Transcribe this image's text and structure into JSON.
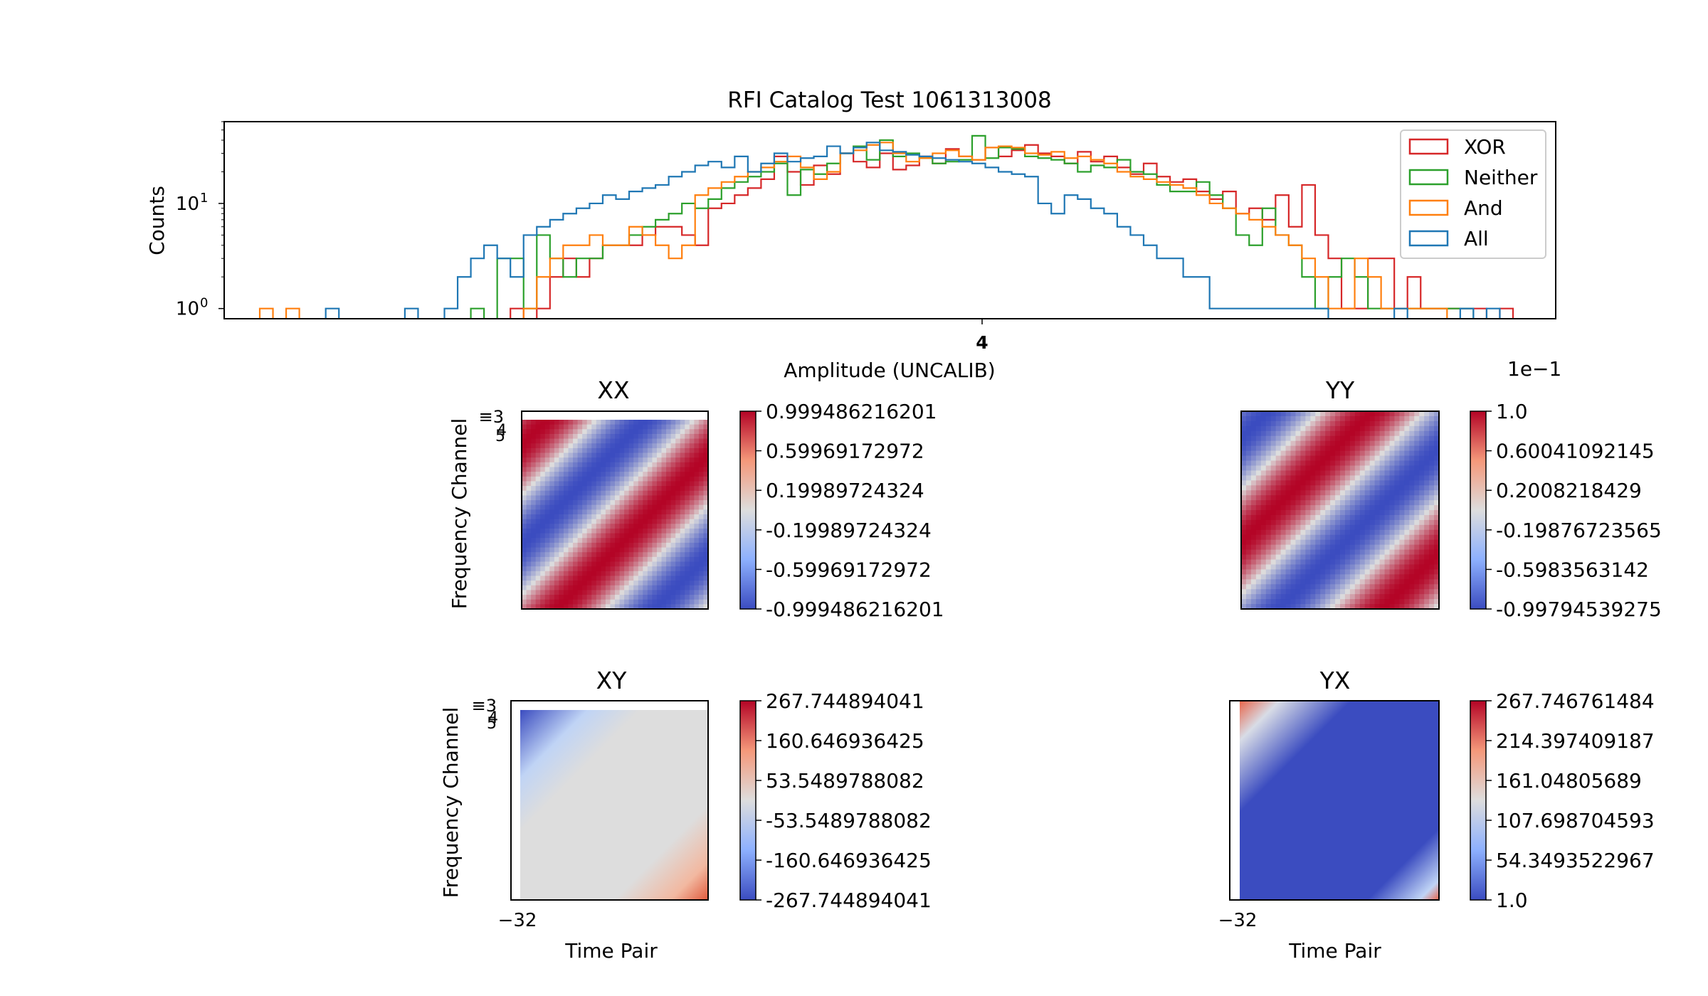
{
  "title": "RFI Catalog Test 1061313008",
  "colors": {
    "XOR": "#d62728",
    "Neither": "#2ca02c",
    "And": "#ff7f0e",
    "All": "#1f77b4",
    "cmap_low": "#3b4cc0",
    "cmap_mid": "#dddddd",
    "cmap_high": "#b40426"
  },
  "chart_data": [
    {
      "type": "histogram",
      "title": "RFI Catalog Test 1061313008",
      "xlabel": "Amplitude (UNCALIB)",
      "ylabel": "Counts",
      "yscale": "log",
      "ylim": [
        0.8,
        60
      ],
      "yticks": [
        {
          "value": 1,
          "label": "10",
          "exp": "0"
        },
        {
          "value": 10,
          "label": "10",
          "exp": "1"
        }
      ],
      "xticks": [
        "4"
      ],
      "bins": 95,
      "legend": {
        "placement": "top-right",
        "entries": [
          "XOR",
          "Neither",
          "And",
          "All"
        ]
      },
      "series": [
        {
          "name": "XOR",
          "color": "#d62728",
          "values": [
            0,
            0,
            0,
            0,
            0,
            0,
            0,
            0,
            0,
            0,
            0,
            0,
            0,
            0,
            0,
            0,
            0,
            0,
            0,
            1,
            0,
            1,
            2,
            3,
            2,
            3,
            4,
            4,
            4,
            5,
            6,
            6,
            5,
            4,
            9,
            10,
            12,
            14,
            17,
            28,
            20,
            15,
            23,
            19,
            30,
            25,
            22,
            30,
            21,
            23,
            28,
            24,
            33,
            28,
            26,
            34,
            28,
            32,
            36,
            30,
            28,
            24,
            31,
            25,
            28,
            22,
            19,
            24,
            18,
            16,
            17,
            13,
            11,
            13,
            8,
            9,
            7,
            12,
            6,
            15,
            5,
            3,
            1,
            1,
            3,
            3,
            1,
            2,
            1,
            1,
            1,
            1,
            1,
            0,
            1,
            0
          ]
        },
        {
          "name": "Neither",
          "color": "#2ca02c",
          "values": [
            0,
            0,
            0,
            0,
            0,
            0,
            0,
            0,
            0,
            0,
            0,
            0,
            0,
            0,
            0,
            0,
            1,
            0,
            3,
            3,
            1,
            5,
            3,
            2,
            3,
            3,
            4,
            4,
            5,
            6,
            7,
            8,
            10,
            9,
            11,
            14,
            16,
            18,
            20,
            24,
            12,
            21,
            19,
            24,
            30,
            35,
            26,
            40,
            28,
            30,
            27,
            24,
            25,
            26,
            44,
            27,
            34,
            33,
            28,
            27,
            26,
            24,
            20,
            23,
            22,
            26,
            20,
            19,
            15,
            13,
            13,
            16,
            12,
            9,
            5,
            4,
            9,
            5,
            4,
            2,
            1,
            2,
            3,
            2,
            1,
            1,
            1,
            1,
            1,
            1,
            1,
            1,
            0,
            0,
            0,
            0
          ]
        },
        {
          "name": "And",
          "color": "#ff7f0e",
          "values": [
            1,
            0,
            1,
            0,
            0,
            0,
            0,
            0,
            0,
            0,
            0,
            0,
            0,
            0,
            0,
            0,
            0,
            0,
            0,
            0,
            1,
            2,
            3,
            4,
            4,
            5,
            4,
            4,
            6,
            5,
            4,
            3,
            4,
            12,
            14,
            16,
            18,
            20,
            22,
            25,
            28,
            22,
            17,
            20,
            30,
            32,
            36,
            38,
            30,
            25,
            27,
            30,
            32,
            28,
            26,
            34,
            35,
            34,
            30,
            29,
            31,
            27,
            28,
            26,
            24,
            20,
            18,
            17,
            16,
            15,
            14,
            12,
            10,
            9,
            8,
            7,
            6,
            5,
            4,
            3,
            2,
            1,
            1,
            3,
            2,
            1,
            1,
            1,
            1,
            1,
            0,
            0,
            0,
            0,
            0,
            0
          ]
        },
        {
          "name": "All",
          "color": "#1f77b4",
          "values": [
            0,
            0,
            0,
            0,
            0,
            1,
            0,
            0,
            0,
            0,
            0,
            1,
            0,
            0,
            1,
            2,
            3,
            4,
            3,
            2,
            5,
            6,
            7,
            8,
            9,
            10,
            12,
            11,
            13,
            14,
            15,
            18,
            20,
            23,
            25,
            22,
            28,
            20,
            24,
            30,
            25,
            27,
            28,
            35,
            30,
            34,
            38,
            32,
            31,
            29,
            28,
            27,
            26,
            25,
            24,
            22,
            20,
            19,
            18,
            10,
            8,
            12,
            11,
            9,
            8,
            6,
            5,
            4,
            3,
            3,
            2,
            2,
            1,
            1,
            1,
            1,
            1,
            1,
            1,
            1,
            1,
            0,
            0,
            0,
            0,
            0,
            1,
            0,
            0,
            0,
            0,
            1,
            0,
            1,
            0,
            0
          ]
        }
      ]
    },
    {
      "type": "heatmap",
      "title": "XX",
      "ylabel": "Frequency Channel",
      "xlabel": "",
      "colorbar_ticks": [
        "0.999486216201",
        "0.59969172972",
        "0.19989724324",
        "-0.19989724324",
        "-0.59969172972",
        "-0.999486216201"
      ],
      "pattern": "diagonal sine, phase 0",
      "colorbar_exponent": ""
    },
    {
      "type": "heatmap",
      "title": "YY",
      "ylabel": "",
      "xlabel": "",
      "colorbar_ticks": [
        "1.0",
        "0.60041092145",
        "0.2008218429",
        "-0.19876723565",
        "-0.5983563142",
        "-0.99794539275"
      ],
      "pattern": "diagonal sine, phase pi",
      "colorbar_exponent": "1e−1"
    },
    {
      "type": "heatmap",
      "title": "XY",
      "ylabel": "Frequency Channel",
      "xlabel": "Time Pair",
      "colorbar_ticks": [
        "267.744894041",
        "160.646936425",
        "53.5489788082",
        "-53.5489788082",
        "-160.646936425",
        "-267.744894041"
      ],
      "pattern": "corner gradient, negative top-left, positive bottom-right"
    },
    {
      "type": "heatmap",
      "title": "YX",
      "ylabel": "",
      "xlabel": "Time Pair",
      "colorbar_ticks": [
        "267.746761484",
        "214.397409187",
        "161.04805689",
        "107.698704593",
        "54.3493522967",
        "1.0"
      ],
      "pattern": "corner hotspots on blue background"
    }
  ]
}
